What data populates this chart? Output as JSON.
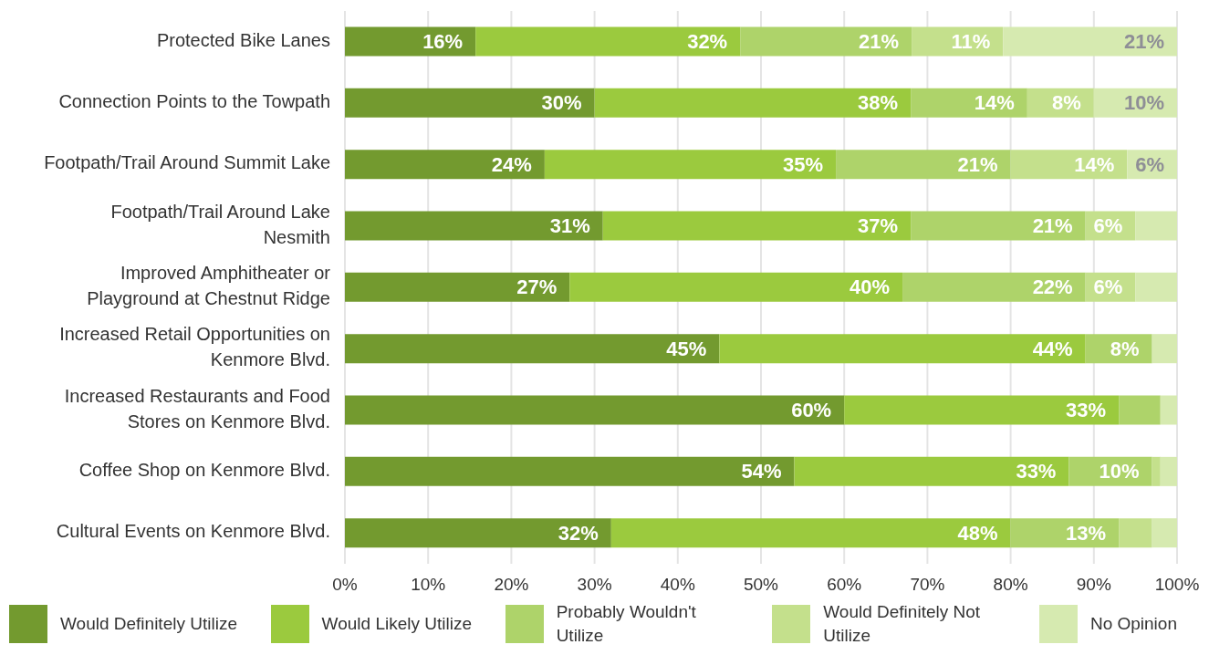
{
  "chart_data": {
    "type": "bar",
    "orientation": "horizontal",
    "stacked": true,
    "categories": [
      "Protected Bike Lanes",
      "Connection Points to the Towpath",
      "Footpath/Trail Around Summit Lake",
      "Footpath/Trail Around Lake Nesmith",
      "Improved Amphitheater or Playground at Chestnut Ridge",
      "Increased Retail Opportunities on Kenmore Blvd.",
      "Increased Restaurants and Food Stores on Kenmore Blvd.",
      "Coffee Shop on Kenmore Blvd.",
      "Cultural Events on Kenmore Blvd."
    ],
    "series": [
      {
        "name": "Would Definitely Utilize",
        "color": "#739a2f",
        "values": [
          15.7,
          30,
          24,
          31,
          27,
          45,
          60,
          54,
          32
        ],
        "value_labels": [
          "16%",
          "30%",
          "24%",
          "31%",
          "27%",
          "45%",
          "60%",
          "54%",
          "32%"
        ]
      },
      {
        "name": "Would Likely Utilize",
        "color": "#9bca3e",
        "values": [
          31.8,
          38,
          35,
          37,
          40,
          44,
          33,
          33,
          48
        ],
        "value_labels": [
          "32%",
          "38%",
          "35%",
          "37%",
          "40%",
          "44%",
          "33%",
          "33%",
          "48%"
        ]
      },
      {
        "name": "Probably Wouldn't Utilize",
        "color": "#aed36a",
        "values": [
          20.6,
          14,
          21,
          21,
          22,
          8,
          5,
          10,
          13
        ],
        "value_labels": [
          "21%",
          "14%",
          "21%",
          "21%",
          "22%",
          "8%",
          null,
          "10%",
          "13%"
        ]
      },
      {
        "name": "Would Definitely Not Utilize",
        "color": "#c4e08c",
        "values": [
          11,
          8,
          14,
          6,
          6,
          0,
          0,
          1,
          4
        ],
        "value_labels": [
          "11%",
          "8%",
          "14%",
          "6%",
          "6%",
          null,
          null,
          null,
          null
        ]
      },
      {
        "name": "No Opinion",
        "color": "#d6eab0",
        "values": [
          20.9,
          10,
          6,
          5,
          5,
          3,
          2,
          2,
          3
        ],
        "value_labels": [
          "21%",
          "10%",
          "6%",
          null,
          null,
          null,
          null,
          null,
          null
        ]
      }
    ],
    "xlim": [
      0,
      100
    ],
    "xticks": [
      {
        "value": 0,
        "label": "0%"
      },
      {
        "value": 10,
        "label": "10%"
      },
      {
        "value": 20,
        "label": "20%"
      },
      {
        "value": 30,
        "label": "30%"
      },
      {
        "value": 40,
        "label": "40%"
      },
      {
        "value": 50,
        "label": "50%"
      },
      {
        "value": 60,
        "label": "60%"
      },
      {
        "value": 70,
        "label": "70%"
      },
      {
        "value": 80,
        "label": "80%"
      },
      {
        "value": 90,
        "label": "90%"
      },
      {
        "value": 100,
        "label": "100%"
      }
    ],
    "grid": "x",
    "legend": "bottom"
  }
}
